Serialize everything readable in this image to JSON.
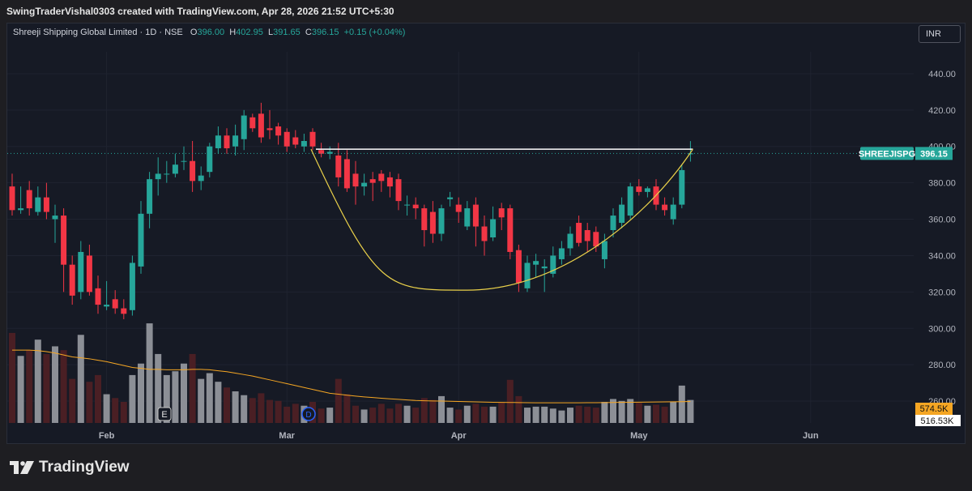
{
  "header": {
    "creator_text": "SwingTraderVishal0303 created with TradingView.com, Apr 28, 2026 21:52 UTC+5:30"
  },
  "legend": {
    "title": "Shreeji Shipping Global Limited · 1D · NSE",
    "o_label": "O",
    "o_value": "396.00",
    "h_label": "H",
    "h_value": "402.95",
    "l_label": "L",
    "l_value": "391.65",
    "c_label": "C",
    "c_value": "396.15",
    "change": "+0.15 (+0.04%)"
  },
  "currency": "INR",
  "footer": {
    "brand": "TradingView"
  },
  "colors": {
    "up": "#26a69a",
    "down": "#f23645",
    "vol_up": "#4a1f24",
    "vol_down": "#8c8f96",
    "volume_ma": "#f5a623",
    "pattern_curve": "#ead14a",
    "resistance": "#ffffff",
    "background": "#161a25"
  },
  "chart_data": {
    "type": "candlestick",
    "symbol_tag": "SHREEJISPG",
    "last_price": "396.15",
    "last_price_value": 396.15,
    "price_ticks": [
      "440.00",
      "420.00",
      "400.00",
      "380.00",
      "360.00",
      "340.00",
      "320.00",
      "300.00",
      "280.00",
      "260.00"
    ],
    "ylim": [
      248,
      452
    ],
    "x_labels": [
      {
        "label": "Feb",
        "index": 11
      },
      {
        "label": "Mar",
        "index": 32
      },
      {
        "label": "Apr",
        "index": 52
      },
      {
        "label": "May",
        "index": 73
      },
      {
        "label": "Jun",
        "index": 93
      }
    ],
    "candles": [
      {
        "o": 378,
        "h": 385,
        "l": 362,
        "c": 365,
        "v": 940
      },
      {
        "o": 365,
        "h": 378,
        "l": 363,
        "c": 366,
        "v": 700
      },
      {
        "o": 376,
        "h": 381,
        "l": 362,
        "c": 366,
        "v": 760
      },
      {
        "o": 364,
        "h": 378,
        "l": 362,
        "c": 372,
        "v": 870
      },
      {
        "o": 372,
        "h": 380,
        "l": 360,
        "c": 364,
        "v": 720
      },
      {
        "o": 360,
        "h": 368,
        "l": 347,
        "c": 362,
        "v": 800
      },
      {
        "o": 362,
        "h": 366,
        "l": 320,
        "c": 335,
        "v": 760
      },
      {
        "o": 335,
        "h": 340,
        "l": 313,
        "c": 318,
        "v": 460
      },
      {
        "o": 320,
        "h": 348,
        "l": 316,
        "c": 342,
        "v": 920
      },
      {
        "o": 340,
        "h": 346,
        "l": 318,
        "c": 320,
        "v": 430
      },
      {
        "o": 322,
        "h": 329,
        "l": 308,
        "c": 313,
        "v": 500
      },
      {
        "o": 312,
        "h": 326,
        "l": 310,
        "c": 313,
        "v": 300
      },
      {
        "o": 316,
        "h": 321,
        "l": 308,
        "c": 311,
        "v": 260
      },
      {
        "o": 311,
        "h": 316,
        "l": 305,
        "c": 308,
        "v": 220
      },
      {
        "o": 310,
        "h": 340,
        "l": 307,
        "c": 336,
        "v": 500
      },
      {
        "o": 334,
        "h": 370,
        "l": 330,
        "c": 363,
        "v": 620
      },
      {
        "o": 363,
        "h": 386,
        "l": 355,
        "c": 382,
        "v": 1040
      },
      {
        "o": 382,
        "h": 394,
        "l": 373,
        "c": 385,
        "v": 720
      },
      {
        "o": 385,
        "h": 392,
        "l": 380,
        "c": 385,
        "v": 500
      },
      {
        "o": 385,
        "h": 396,
        "l": 383,
        "c": 390,
        "v": 540
      },
      {
        "o": 392,
        "h": 400,
        "l": 387,
        "c": 392,
        "v": 620
      },
      {
        "o": 392,
        "h": 403,
        "l": 375,
        "c": 381,
        "v": 720
      },
      {
        "o": 381,
        "h": 389,
        "l": 376,
        "c": 384,
        "v": 460
      },
      {
        "o": 386,
        "h": 402,
        "l": 383,
        "c": 400,
        "v": 520
      },
      {
        "o": 399,
        "h": 411,
        "l": 396,
        "c": 406,
        "v": 430
      },
      {
        "o": 406,
        "h": 410,
        "l": 396,
        "c": 399,
        "v": 370
      },
      {
        "o": 400,
        "h": 412,
        "l": 395,
        "c": 406,
        "v": 330
      },
      {
        "o": 404,
        "h": 420,
        "l": 398,
        "c": 417,
        "v": 290
      },
      {
        "o": 416,
        "h": 418,
        "l": 408,
        "c": 410,
        "v": 260
      },
      {
        "o": 418,
        "h": 424,
        "l": 402,
        "c": 405,
        "v": 310
      },
      {
        "o": 410,
        "h": 420,
        "l": 404,
        "c": 409,
        "v": 240
      },
      {
        "o": 411,
        "h": 413,
        "l": 401,
        "c": 406,
        "v": 230
      },
      {
        "o": 408,
        "h": 410,
        "l": 397,
        "c": 400,
        "v": 170
      },
      {
        "o": 405,
        "h": 409,
        "l": 399,
        "c": 401,
        "v": 200
      },
      {
        "o": 400,
        "h": 407,
        "l": 397,
        "c": 403,
        "v": 180
      },
      {
        "o": 408,
        "h": 410,
        "l": 398,
        "c": 400,
        "v": 220
      },
      {
        "o": 398,
        "h": 402,
        "l": 394,
        "c": 396,
        "v": 150
      },
      {
        "o": 396,
        "h": 400,
        "l": 393,
        "c": 397,
        "v": 160
      },
      {
        "o": 395,
        "h": 402,
        "l": 378,
        "c": 383,
        "v": 460
      },
      {
        "o": 393,
        "h": 398,
        "l": 375,
        "c": 377,
        "v": 300
      },
      {
        "o": 385,
        "h": 392,
        "l": 368,
        "c": 378,
        "v": 180
      },
      {
        "o": 378,
        "h": 385,
        "l": 373,
        "c": 380,
        "v": 140
      },
      {
        "o": 382,
        "h": 386,
        "l": 370,
        "c": 380,
        "v": 160
      },
      {
        "o": 385,
        "h": 387,
        "l": 375,
        "c": 381,
        "v": 200
      },
      {
        "o": 383,
        "h": 386,
        "l": 372,
        "c": 378,
        "v": 150
      },
      {
        "o": 382,
        "h": 385,
        "l": 365,
        "c": 370,
        "v": 200
      },
      {
        "o": 368,
        "h": 373,
        "l": 362,
        "c": 368,
        "v": 180
      },
      {
        "o": 368,
        "h": 372,
        "l": 360,
        "c": 366,
        "v": 160
      },
      {
        "o": 366,
        "h": 368,
        "l": 345,
        "c": 354,
        "v": 260
      },
      {
        "o": 364,
        "h": 370,
        "l": 347,
        "c": 352,
        "v": 240
      },
      {
        "o": 352,
        "h": 368,
        "l": 348,
        "c": 366,
        "v": 280
      },
      {
        "o": 371,
        "h": 375,
        "l": 367,
        "c": 372,
        "v": 160
      },
      {
        "o": 368,
        "h": 372,
        "l": 358,
        "c": 364,
        "v": 140
      },
      {
        "o": 356,
        "h": 370,
        "l": 354,
        "c": 366,
        "v": 180
      },
      {
        "o": 368,
        "h": 372,
        "l": 345,
        "c": 356,
        "v": 200
      },
      {
        "o": 356,
        "h": 362,
        "l": 340,
        "c": 348,
        "v": 170
      },
      {
        "o": 350,
        "h": 367,
        "l": 348,
        "c": 360,
        "v": 170
      },
      {
        "o": 366,
        "h": 369,
        "l": 354,
        "c": 361,
        "v": 220
      },
      {
        "o": 366,
        "h": 368,
        "l": 338,
        "c": 342,
        "v": 450
      },
      {
        "o": 343,
        "h": 346,
        "l": 320,
        "c": 325,
        "v": 280
      },
      {
        "o": 322,
        "h": 340,
        "l": 320,
        "c": 336,
        "v": 160
      },
      {
        "o": 335,
        "h": 341,
        "l": 328,
        "c": 337,
        "v": 170
      },
      {
        "o": 333,
        "h": 338,
        "l": 320,
        "c": 334,
        "v": 170
      },
      {
        "o": 330,
        "h": 345,
        "l": 328,
        "c": 340,
        "v": 150
      },
      {
        "o": 338,
        "h": 348,
        "l": 335,
        "c": 344,
        "v": 130
      },
      {
        "o": 344,
        "h": 356,
        "l": 340,
        "c": 352,
        "v": 160
      },
      {
        "o": 358,
        "h": 362,
        "l": 345,
        "c": 347,
        "v": 180
      },
      {
        "o": 354,
        "h": 358,
        "l": 342,
        "c": 348,
        "v": 170
      },
      {
        "o": 353,
        "h": 356,
        "l": 342,
        "c": 345,
        "v": 160
      },
      {
        "o": 338,
        "h": 352,
        "l": 333,
        "c": 348,
        "v": 220
      },
      {
        "o": 354,
        "h": 366,
        "l": 350,
        "c": 362,
        "v": 250
      },
      {
        "o": 358,
        "h": 372,
        "l": 355,
        "c": 368,
        "v": 230
      },
      {
        "o": 362,
        "h": 380,
        "l": 360,
        "c": 378,
        "v": 250
      },
      {
        "o": 378,
        "h": 382,
        "l": 373,
        "c": 375,
        "v": 210
      },
      {
        "o": 375,
        "h": 378,
        "l": 372,
        "c": 377,
        "v": 180
      },
      {
        "o": 378,
        "h": 382,
        "l": 365,
        "c": 368,
        "v": 190
      },
      {
        "o": 368,
        "h": 372,
        "l": 362,
        "c": 365,
        "v": 170
      },
      {
        "o": 360,
        "h": 372,
        "l": 357,
        "c": 368,
        "v": 220
      },
      {
        "o": 368,
        "h": 390,
        "l": 366,
        "c": 387,
        "v": 390
      },
      {
        "o": 396,
        "h": 402.95,
        "l": 391.65,
        "c": 396.15,
        "v": 240
      }
    ],
    "volume_ma": [
      760,
      760,
      760,
      755,
      745,
      730,
      710,
      690,
      680,
      670,
      655,
      640,
      620,
      600,
      580,
      570,
      560,
      560,
      555,
      555,
      555,
      560,
      560,
      555,
      545,
      535,
      520,
      505,
      490,
      470,
      450,
      430,
      410,
      390,
      370,
      350,
      330,
      310,
      300,
      290,
      280,
      272,
      265,
      258,
      252,
      246,
      240,
      235,
      232,
      230,
      228,
      226,
      224,
      222,
      220,
      218,
      216,
      215,
      214,
      213,
      212,
      211,
      210,
      210,
      210,
      210,
      211,
      212,
      212,
      213,
      214,
      215,
      216,
      217,
      218,
      219,
      220,
      221,
      222,
      224
    ],
    "volume_labels": {
      "volume_ma_value": "574.5K",
      "volume_value": "516.53K"
    },
    "volume_max": 1100,
    "annotations": {
      "earnings_marker": "E",
      "dividend_marker": "D"
    },
    "resistance_price": 398.5,
    "cup": {
      "start_index": 35,
      "end_index": 79,
      "bottom_index": 53,
      "bottom_price": 321,
      "rim_price": 398.5
    }
  }
}
